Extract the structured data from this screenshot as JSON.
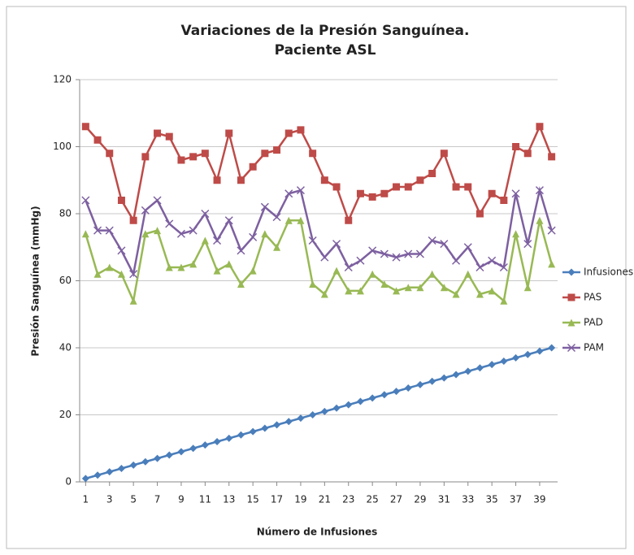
{
  "chart_data": {
    "type": "line",
    "title": [
      "Variaciones de la Presión Sanguínea.",
      "Paciente ASL"
    ],
    "x_label": "Número de Infusiones",
    "y_label": "Presión Sanguínea (mmHg)",
    "x": [
      1,
      2,
      3,
      4,
      5,
      6,
      7,
      8,
      9,
      10,
      11,
      12,
      13,
      14,
      15,
      16,
      17,
      18,
      19,
      20,
      21,
      22,
      23,
      24,
      25,
      26,
      27,
      28,
      29,
      30,
      31,
      32,
      33,
      34,
      35,
      36,
      37,
      38,
      39,
      40
    ],
    "xlim": [
      0.5,
      40.5
    ],
    "xticks": [
      1,
      3,
      5,
      7,
      9,
      11,
      13,
      15,
      17,
      19,
      21,
      23,
      25,
      27,
      29,
      31,
      33,
      35,
      37,
      39
    ],
    "ylim": [
      0,
      120
    ],
    "yticks": [
      0,
      20,
      40,
      60,
      80,
      100,
      120
    ],
    "grid": true,
    "legend": "right",
    "series": [
      {
        "name": "Infusiones",
        "color": "#4a7ebb",
        "marker": "diamond",
        "values": [
          1,
          2,
          3,
          4,
          5,
          6,
          7,
          8,
          9,
          10,
          11,
          12,
          13,
          14,
          15,
          16,
          17,
          18,
          19,
          20,
          21,
          22,
          23,
          24,
          25,
          26,
          27,
          28,
          29,
          30,
          31,
          32,
          33,
          34,
          35,
          36,
          37,
          38,
          39,
          40
        ]
      },
      {
        "name": "PAS",
        "color": "#be4b48",
        "marker": "square",
        "values": [
          106,
          102,
          98,
          84,
          78,
          97,
          104,
          103,
          96,
          97,
          98,
          90,
          104,
          90,
          94,
          98,
          99,
          104,
          105,
          98,
          90,
          88,
          78,
          86,
          85,
          86,
          88,
          88,
          90,
          92,
          98,
          88,
          88,
          80,
          86,
          84,
          100,
          98,
          106,
          97
        ]
      },
      {
        "name": "PAD",
        "color": "#98b954",
        "marker": "triangle",
        "values": [
          74,
          62,
          64,
          62,
          54,
          74,
          75,
          64,
          64,
          65,
          72,
          63,
          65,
          59,
          63,
          74,
          70,
          78,
          78,
          59,
          56,
          63,
          57,
          57,
          62,
          59,
          57,
          58,
          58,
          62,
          58,
          56,
          62,
          56,
          57,
          54,
          74,
          58,
          78,
          65
        ]
      },
      {
        "name": "PAM",
        "color": "#7d60a0",
        "marker": "x",
        "values": [
          84,
          75,
          75,
          69,
          62,
          81,
          84,
          77,
          74,
          75,
          80,
          72,
          78,
          69,
          73,
          82,
          79,
          86,
          87,
          72,
          67,
          71,
          64,
          66,
          69,
          68,
          67,
          68,
          68,
          72,
          71,
          66,
          70,
          64,
          66,
          64,
          86,
          71,
          87,
          75
        ]
      }
    ]
  }
}
